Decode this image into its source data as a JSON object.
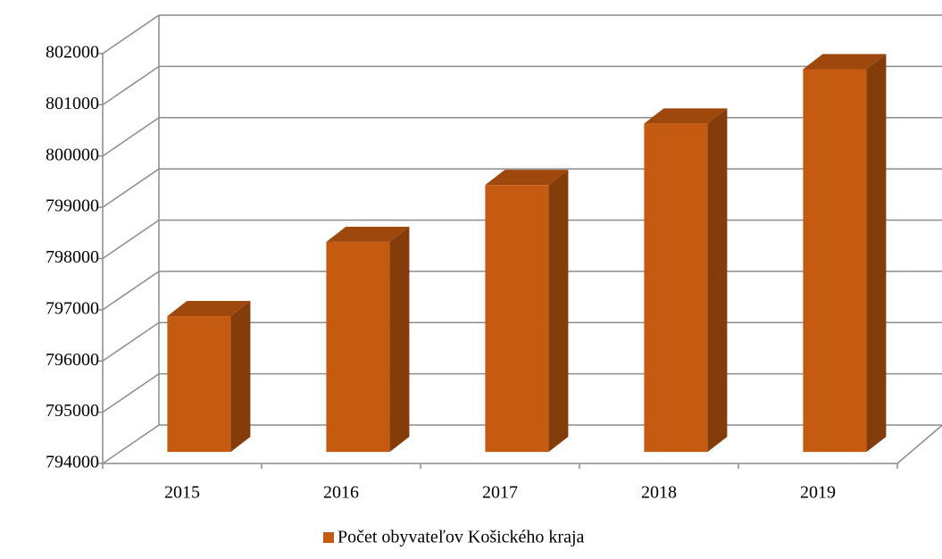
{
  "chart_data": {
    "type": "bar3d",
    "title": null,
    "categories": [
      "2015",
      "2016",
      "2017",
      "2018",
      "2019"
    ],
    "series": [
      {
        "name": "Počet obyvateľov Košického kraja",
        "color": "#c55a11",
        "values": [
          796650,
          798100,
          799210,
          800410,
          801470
        ]
      }
    ],
    "ylim": [
      794000,
      802000
    ],
    "yticks": [
      794000,
      795000,
      796000,
      797000,
      798000,
      799000,
      800000,
      801000,
      802000
    ],
    "grid": true,
    "legend": "bottom"
  }
}
